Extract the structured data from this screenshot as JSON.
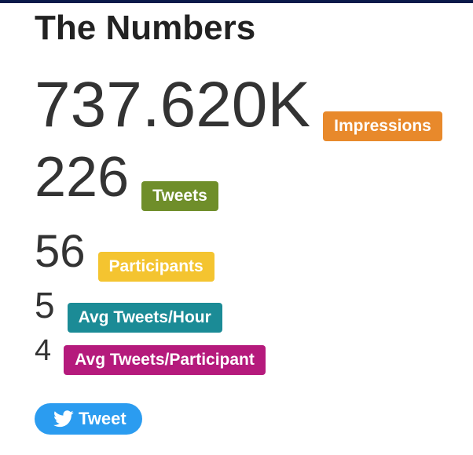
{
  "header": {
    "title": "The Numbers"
  },
  "stats": {
    "impressions": {
      "value": "737.620K",
      "label": "Impressions",
      "color": "#e8892b"
    },
    "tweets": {
      "value": "226",
      "label": "Tweets",
      "color": "#6f8e2a"
    },
    "participants": {
      "value": "56",
      "label": "Participants",
      "color": "#f4c430"
    },
    "avg_tweets_hour": {
      "value": "5",
      "label": "Avg Tweets/Hour",
      "color": "#1b8b96"
    },
    "avg_tweets_participant": {
      "value": "4",
      "label": "Avg Tweets/Participant",
      "color": "#b51a7c"
    }
  },
  "share": {
    "tweet_label": "Tweet",
    "icon": "twitter-bird-icon",
    "color": "#2b9cf0"
  }
}
